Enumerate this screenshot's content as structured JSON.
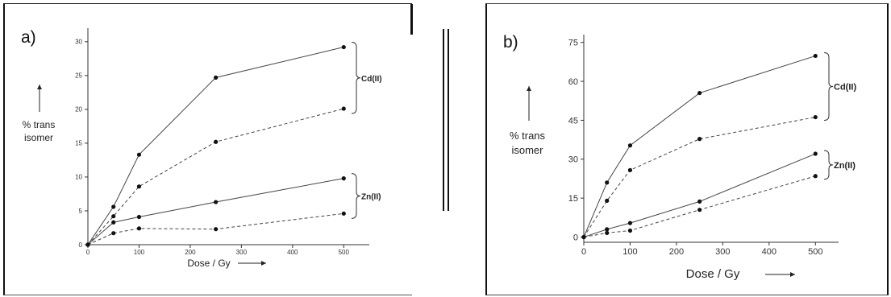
{
  "chart_data": [
    {
      "type": "line",
      "panel_label": "a)",
      "xlabel": "Dose / Gy",
      "ylabel_line1": "% trans",
      "ylabel_line2": "isomer",
      "xlim": [
        0,
        550
      ],
      "ylim": [
        0,
        32
      ],
      "xticks": [
        0,
        100,
        200,
        300,
        400,
        500
      ],
      "yticks": [
        0,
        5,
        10,
        15,
        20,
        25,
        30
      ],
      "groups": [
        {
          "label": "Cd(II)",
          "top": 29.2,
          "bottom": 20.1
        },
        {
          "label": "Zn(II)",
          "top": 9.8,
          "bottom": 4.6
        }
      ],
      "series": [
        {
          "style": "solid",
          "x": [
            0,
            50,
            100,
            250,
            500
          ],
          "y": [
            0,
            5.6,
            13.3,
            24.7,
            29.2
          ]
        },
        {
          "style": "dashed",
          "x": [
            0,
            50,
            100,
            250,
            500
          ],
          "y": [
            0,
            4.2,
            8.6,
            15.2,
            20.1
          ]
        },
        {
          "style": "solid",
          "x": [
            0,
            50,
            100,
            250,
            500
          ],
          "y": [
            0,
            3.3,
            4.1,
            6.3,
            9.8
          ]
        },
        {
          "style": "dashed",
          "x": [
            0,
            50,
            100,
            250,
            500
          ],
          "y": [
            0,
            1.7,
            2.4,
            2.3,
            4.6
          ]
        }
      ]
    },
    {
      "type": "line",
      "panel_label": "b)",
      "xlabel": "Dose / Gy",
      "ylabel_line1": "% trans",
      "ylabel_line2": "isomer",
      "xlim": [
        0,
        550
      ],
      "ylim": [
        -2,
        78
      ],
      "xticks": [
        0,
        100,
        200,
        300,
        400,
        500
      ],
      "yticks": [
        0,
        15,
        30,
        45,
        60,
        75
      ],
      "groups": [
        {
          "label": "Cd(II)",
          "top": 69.8,
          "bottom": 46.2
        },
        {
          "label": "Zn(II)",
          "top": 32.1,
          "bottom": 23.5
        }
      ],
      "series": [
        {
          "style": "solid",
          "x": [
            0,
            50,
            100,
            250,
            500
          ],
          "y": [
            0,
            21,
            35.3,
            55.5,
            69.8
          ]
        },
        {
          "style": "dashed",
          "x": [
            0,
            50,
            100,
            250,
            500
          ],
          "y": [
            0,
            14,
            25.8,
            37.8,
            46.2
          ]
        },
        {
          "style": "solid",
          "x": [
            0,
            50,
            100,
            250,
            500
          ],
          "y": [
            0,
            3,
            5.4,
            13.7,
            32.1
          ]
        },
        {
          "style": "dashed",
          "x": [
            0,
            50,
            100,
            250,
            500
          ],
          "y": [
            0,
            1.6,
            2.5,
            10.5,
            23.5
          ]
        }
      ]
    }
  ]
}
